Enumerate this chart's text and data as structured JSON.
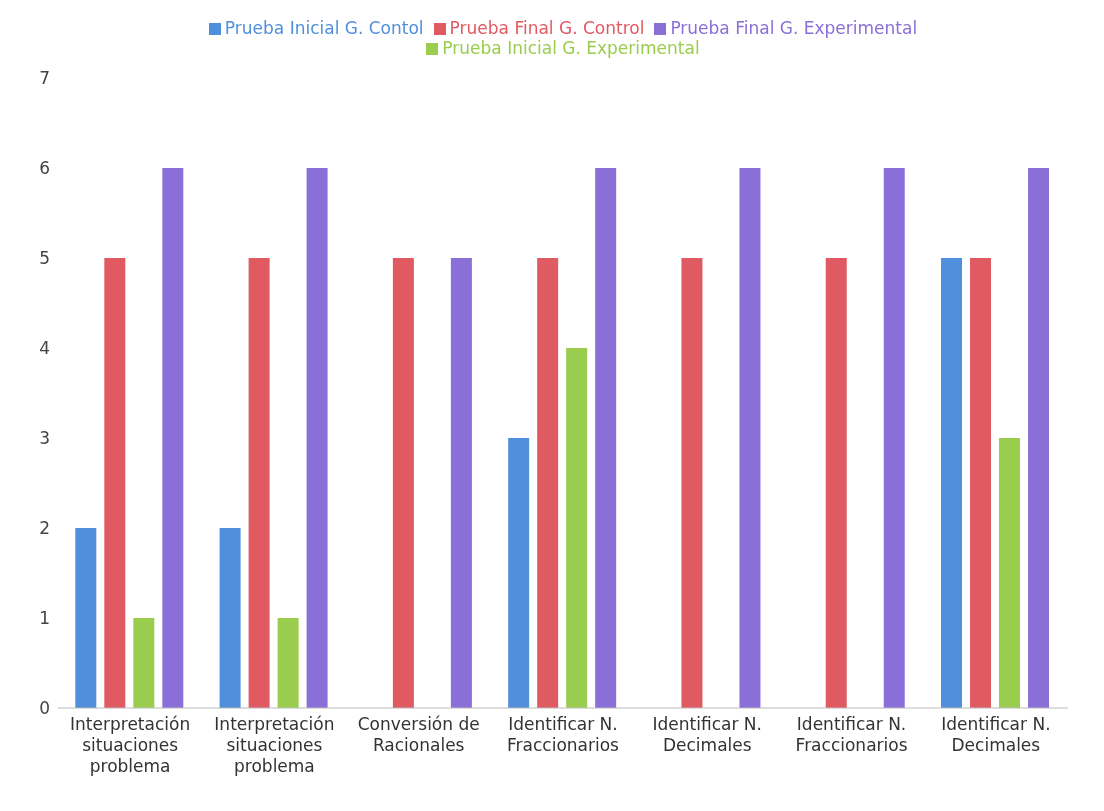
{
  "chart_data": {
    "type": "bar",
    "categories": [
      "Interpretación situaciones problema",
      "Interpretación situaciones problema",
      "Conversión de Racionales",
      "Identificar N. Fraccionarios",
      "Identificar N. Decimales",
      "Identificar N. Fraccionarios",
      "Identificar N. Decimales"
    ],
    "series": [
      {
        "name": "Prueba  Inicial G. Contol",
        "color": "#4f8fdc",
        "values": [
          2,
          2,
          0,
          3,
          0,
          0,
          5
        ]
      },
      {
        "name": "Prueba Final G. Control",
        "color": "#e05a62",
        "values": [
          5,
          5,
          5,
          5,
          5,
          5,
          5
        ]
      },
      {
        "name": "Prueba Inicial G. Experimental",
        "color": "#9acd4e",
        "values": [
          1,
          1,
          0,
          4,
          0,
          0,
          3
        ]
      },
      {
        "name": "Prueba Final G. Experimental",
        "color": "#8a6fd8",
        "values": [
          6,
          6,
          5,
          6,
          6,
          6,
          6
        ]
      }
    ],
    "ylim": [
      0,
      7
    ],
    "yticks": [
      0,
      1,
      2,
      3,
      4,
      5,
      6,
      7
    ],
    "grid": false,
    "legend": "top"
  }
}
